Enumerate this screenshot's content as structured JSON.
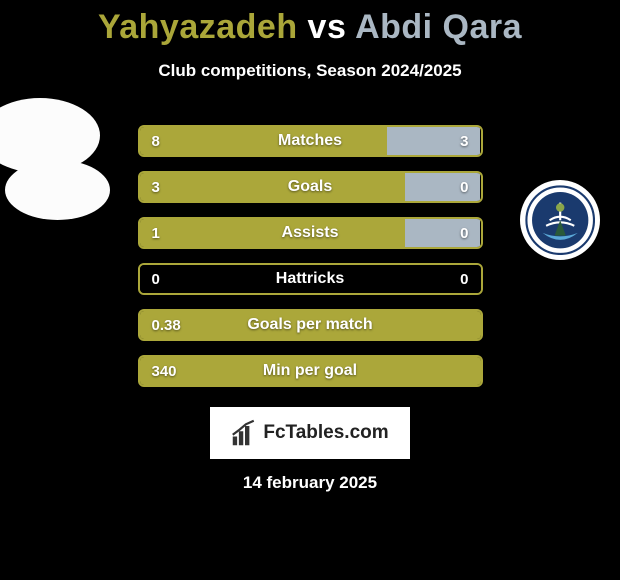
{
  "title": {
    "player1": "Yahyazadeh",
    "vs": "vs",
    "player2": "Abdi Qara",
    "player1_color": "#aaa639",
    "vs_color": "#ffffff",
    "player2_color": "#aab7c3"
  },
  "subtitle": "Club competitions, Season 2024/2025",
  "colors": {
    "left_fill": "#aba73a",
    "right_fill": "#aab7c3",
    "neutral_fill": "#000000",
    "border_left": "#aba73a",
    "background": "#000000"
  },
  "bars": [
    {
      "label": "Matches",
      "left_val": "8",
      "right_val": "3",
      "left_pct": 72.7,
      "right_pct": 27.3,
      "left_color": "#aba73a",
      "right_color": "#aab7c3",
      "border": "#aba73a"
    },
    {
      "label": "Goals",
      "left_val": "3",
      "right_val": "0",
      "left_pct": 78.0,
      "right_pct": 22.0,
      "left_color": "#aba73a",
      "right_color": "#aab7c3",
      "border": "#aba73a"
    },
    {
      "label": "Assists",
      "left_val": "1",
      "right_val": "0",
      "left_pct": 78.0,
      "right_pct": 22.0,
      "left_color": "#aba73a",
      "right_color": "#aab7c3",
      "border": "#aba73a"
    },
    {
      "label": "Hattricks",
      "left_val": "0",
      "right_val": "0",
      "left_pct": 50.0,
      "right_pct": 50.0,
      "left_color": "#000000",
      "right_color": "#000000",
      "border": "#aba73a"
    },
    {
      "label": "Goals per match",
      "left_val": "0.38",
      "right_val": "",
      "left_pct": 100,
      "right_pct": 0,
      "left_color": "#aba73a",
      "right_color": "#aba73a",
      "border": "#aba73a"
    },
    {
      "label": "Min per goal",
      "left_val": "340",
      "right_val": "",
      "left_pct": 100,
      "right_pct": 0,
      "left_color": "#aba73a",
      "right_color": "#aba73a",
      "border": "#aba73a"
    }
  ],
  "logo_text": "FcTables.com",
  "date": "14 february 2025",
  "icons": {
    "club_badge": "club-badge-icon",
    "chart": "chart-icon",
    "silhouette": "player-silhouette-icon"
  }
}
